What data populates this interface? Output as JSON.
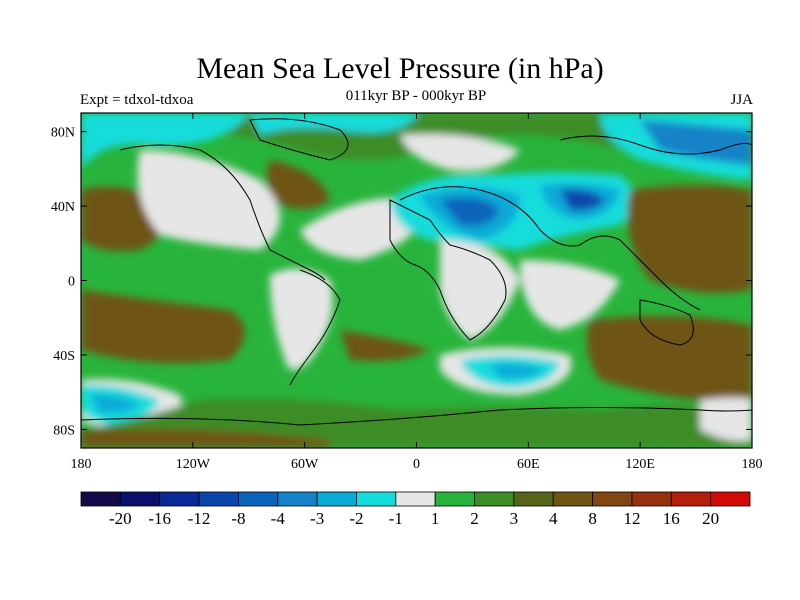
{
  "title": "Mean Sea Level Pressure (in hPa)",
  "subtitle": "011kyr BP - 000kyr BP",
  "experiment": "Expt = tdxol-tdxoa",
  "season": "JJA",
  "map": {
    "lon_range": [
      -180,
      180
    ],
    "lat_range": [
      -90,
      90
    ],
    "x_ticks": [
      {
        "lon": -180,
        "label": "180"
      },
      {
        "lon": -120,
        "label": "120W"
      },
      {
        "lon": -60,
        "label": "60W"
      },
      {
        "lon": 0,
        "label": "0"
      },
      {
        "lon": 60,
        "label": "60E"
      },
      {
        "lon": 120,
        "label": "120E"
      },
      {
        "lon": 180,
        "label": "180"
      }
    ],
    "y_ticks": [
      {
        "lat": 80,
        "label": "80N"
      },
      {
        "lat": 40,
        "label": "40N"
      },
      {
        "lat": 0,
        "label": "0"
      },
      {
        "lat": -40,
        "label": "40S"
      },
      {
        "lat": -80,
        "label": "80S"
      }
    ]
  },
  "colorbar": {
    "colors": [
      "#140a4a",
      "#0a0f6e",
      "#0a2896",
      "#0a46ab",
      "#0a64b9",
      "#1482c8",
      "#0aaad7",
      "#14dcdc",
      "#e6e6e6",
      "#28b43c",
      "#3c8c28",
      "#56641a",
      "#6e5514",
      "#824614",
      "#96320f",
      "#b41e0a",
      "#d20a05"
    ],
    "labels": [
      "-20",
      "-16",
      "-12",
      "-8",
      "-4",
      "-3",
      "-2",
      "-1",
      "1",
      "2",
      "3",
      "4",
      "8",
      "12",
      "16",
      "20"
    ]
  }
}
